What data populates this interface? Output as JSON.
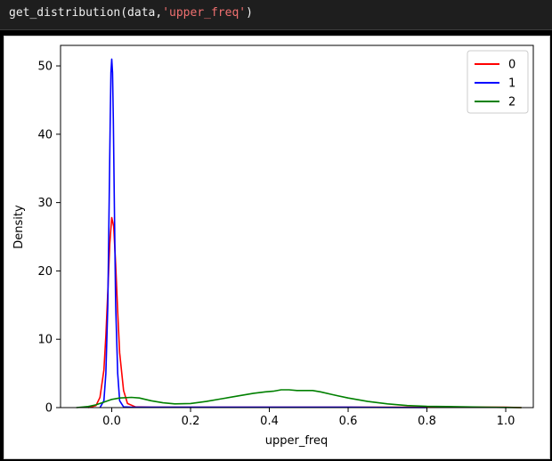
{
  "code_cell": {
    "prefix": "get_distribution(data,",
    "string_arg": "'upper_freq'",
    "suffix": ")"
  },
  "chart_data": {
    "type": "line",
    "title": "",
    "xlabel": "upper_freq",
    "ylabel": "Density",
    "xlim": [
      -0.13,
      1.07
    ],
    "ylim": [
      0,
      53
    ],
    "xticks": [
      0.0,
      0.2,
      0.4,
      0.6,
      0.8,
      1.0
    ],
    "xtick_labels": [
      "0.0",
      "0.2",
      "0.4",
      "0.6",
      "0.8",
      "1.0"
    ],
    "yticks": [
      0,
      10,
      20,
      30,
      40,
      50
    ],
    "ytick_labels": [
      "0",
      "10",
      "20",
      "30",
      "40",
      "50"
    ],
    "grid": false,
    "legend_position": "top-right",
    "series": [
      {
        "name": "0",
        "color": "#ff0000",
        "x": [
          -0.06,
          -0.04,
          -0.03,
          -0.02,
          -0.015,
          -0.01,
          -0.005,
          0.0,
          0.005,
          0.01,
          0.015,
          0.02,
          0.03,
          0.04,
          0.06,
          0.1,
          0.3,
          0.6,
          0.8,
          1.0,
          1.04
        ],
        "y": [
          0.0,
          0.3,
          1.5,
          5.5,
          10.5,
          17.0,
          24.0,
          27.8,
          26.5,
          21.0,
          14.0,
          8.0,
          2.5,
          0.6,
          0.1,
          0.05,
          0.05,
          0.05,
          0.05,
          0.05,
          0.0
        ]
      },
      {
        "name": "1",
        "color": "#0000ff",
        "x": [
          -0.03,
          -0.02,
          -0.015,
          -0.01,
          -0.007,
          -0.004,
          -0.002,
          0.0,
          0.002,
          0.004,
          0.007,
          0.01,
          0.015,
          0.02,
          0.03,
          0.05,
          0.3,
          0.6,
          0.8
        ],
        "y": [
          0.0,
          1.0,
          5.0,
          15.0,
          28.0,
          42.0,
          49.0,
          51.0,
          49.0,
          42.0,
          28.0,
          15.0,
          5.0,
          1.0,
          0.1,
          0.05,
          0.05,
          0.05,
          0.0
        ]
      },
      {
        "name": "2",
        "color": "#008000",
        "x": [
          -0.09,
          -0.06,
          -0.04,
          -0.02,
          0.0,
          0.02,
          0.05,
          0.07,
          0.1,
          0.13,
          0.16,
          0.2,
          0.24,
          0.28,
          0.32,
          0.36,
          0.39,
          0.41,
          0.43,
          0.45,
          0.47,
          0.49,
          0.51,
          0.53,
          0.56,
          0.6,
          0.65,
          0.7,
          0.75,
          0.8,
          0.85,
          0.9,
          0.95,
          1.0,
          1.04
        ],
        "y": [
          0.0,
          0.15,
          0.4,
          0.8,
          1.2,
          1.4,
          1.5,
          1.4,
          1.0,
          0.7,
          0.55,
          0.6,
          0.9,
          1.3,
          1.7,
          2.1,
          2.3,
          2.4,
          2.6,
          2.6,
          2.5,
          2.5,
          2.5,
          2.3,
          1.9,
          1.4,
          0.9,
          0.55,
          0.3,
          0.2,
          0.15,
          0.1,
          0.05,
          0.03,
          0.0
        ]
      }
    ]
  }
}
